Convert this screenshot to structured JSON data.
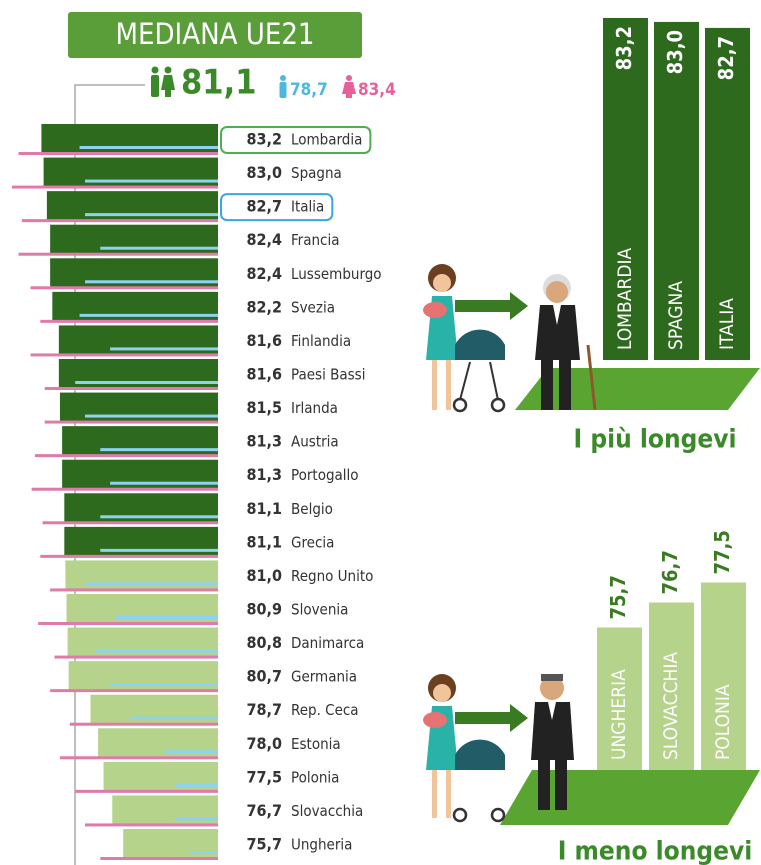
{
  "header": {
    "title": "MEDIANA UE21",
    "median_total": "81,1",
    "median_male": "78,7",
    "median_female": "83,4"
  },
  "chart_data": [
    {
      "type": "hbar",
      "categories": [
        "Lombardia",
        "Spagna",
        "Italia",
        "Francia",
        "Lussemburgo",
        "Svezia",
        "Finlandia",
        "Paesi Bassi",
        "Irlanda",
        "Austria",
        "Portogallo",
        "Belgio",
        "Grecia",
        "Regno Unito",
        "Slovenia",
        "Danimarca",
        "Germania",
        "Rep. Ceca",
        "Estonia",
        "Polonia",
        "Slovacchia",
        "Ungheria"
      ],
      "values": [
        83.2,
        83.0,
        82.7,
        82.4,
        82.4,
        82.2,
        81.6,
        81.6,
        81.5,
        81.3,
        81.3,
        81.1,
        81.1,
        81.0,
        80.9,
        80.8,
        80.7,
        78.7,
        78.0,
        77.5,
        76.7,
        75.7
      ],
      "value_labels": [
        "83,2",
        "83,0",
        "82,7",
        "82,4",
        "82,4",
        "82,2",
        "81,6",
        "81,6",
        "81,5",
        "81,3",
        "81,3",
        "81,1",
        "81,1",
        "81,0",
        "80,9",
        "80,8",
        "80,7",
        "78,7",
        "78,0",
        "77,5",
        "76,7",
        "75,7"
      ],
      "colors": [
        "#2d6a1e",
        "#2d6a1e",
        "#2d6a1e",
        "#2d6a1e",
        "#2d6a1e",
        "#2d6a1e",
        "#2d6a1e",
        "#2d6a1e",
        "#2d6a1e",
        "#2d6a1e",
        "#2d6a1e",
        "#2d6a1e",
        "#2d6a1e",
        "#b5d38a",
        "#b5d38a",
        "#b5d38a",
        "#b5d38a",
        "#b5d38a",
        "#b5d38a",
        "#b5d38a",
        "#b5d38a",
        "#b5d38a"
      ],
      "female_values": [
        85.3,
        85.9,
        85.0,
        85.3,
        84.2,
        83.3,
        84.2,
        82.9,
        82.9,
        83.8,
        84.1,
        83.1,
        83.3,
        82.4,
        83.5,
        82.0,
        82.4,
        80.6,
        81.5,
        80.1,
        79.2,
        77.8
      ],
      "male_values": [
        79.7,
        79.2,
        79.2,
        77.8,
        79.2,
        79.7,
        76.9,
        80.1,
        79.2,
        77.8,
        76.9,
        77.8,
        77.8,
        79.2,
        76.4,
        78.3,
        76.9,
        75.1,
        71.9,
        70.9,
        70.9,
        69.6
      ],
      "female_color": "#e07aa8",
      "male_color": "#8dd3f0",
      "outlined": [
        {
          "index": 0,
          "color": "#4caf50"
        },
        {
          "index": 2,
          "color": "#3aa8dc"
        }
      ],
      "xlim": [
        67,
        87
      ]
    },
    {
      "type": "vbar",
      "title": "I più longevi",
      "categories": [
        "LOMBARDIA",
        "SPAGNA",
        "ITALIA"
      ],
      "values": [
        83.2,
        83.0,
        82.7
      ],
      "value_labels": [
        "83,2",
        "83,0",
        "82,7"
      ],
      "color": "#2d6a1e",
      "ylim": [
        66,
        83.5
      ]
    },
    {
      "type": "vbar",
      "title": "I meno longevi",
      "categories": [
        "UNGHERIA",
        "SLOVACCHIA",
        "POLONIA"
      ],
      "values": [
        75.7,
        76.7,
        77.5
      ],
      "value_labels": [
        "75,7",
        "76,7",
        "77,5"
      ],
      "color": "#b5d38a",
      "ylim": [
        70,
        78
      ]
    }
  ]
}
